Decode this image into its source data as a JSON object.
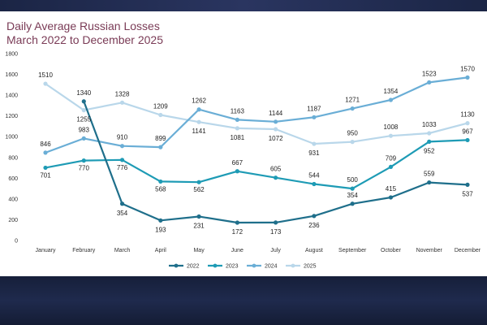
{
  "chart_data": {
    "type": "line",
    "title": "Daily Average Russian Losses",
    "subtitle": "March 2022 to December 2025",
    "xlabel": "",
    "ylabel": "",
    "ylim": [
      0,
      1800
    ],
    "yticks": [
      0,
      200,
      400,
      600,
      800,
      1000,
      1200,
      1400,
      1600,
      1800
    ],
    "grid": false,
    "legend": "bottom",
    "categories": [
      "January",
      "February",
      "March",
      "April",
      "May",
      "June",
      "July",
      "August",
      "September",
      "October",
      "November",
      "December"
    ],
    "series": [
      {
        "name": "2022",
        "color": "#1f6f8b",
        "values": [
          null,
          1340,
          354,
          193,
          231,
          172,
          173,
          236,
          354,
          415,
          559,
          537
        ]
      },
      {
        "name": "2023",
        "color": "#1e9bb5",
        "values": [
          701,
          770,
          776,
          568,
          562,
          667,
          605,
          544,
          500,
          709,
          952,
          967
        ]
      },
      {
        "name": "2024",
        "color": "#6aaed6",
        "values": [
          846,
          983,
          910,
          899,
          1262,
          1163,
          1144,
          1187,
          1271,
          1354,
          1523,
          1570
        ]
      },
      {
        "name": "2025",
        "color": "#b9d7ea",
        "values": [
          1510,
          1255,
          1328,
          1209,
          1141,
          1081,
          1072,
          931,
          950,
          1008,
          1033,
          1130
        ]
      }
    ]
  }
}
